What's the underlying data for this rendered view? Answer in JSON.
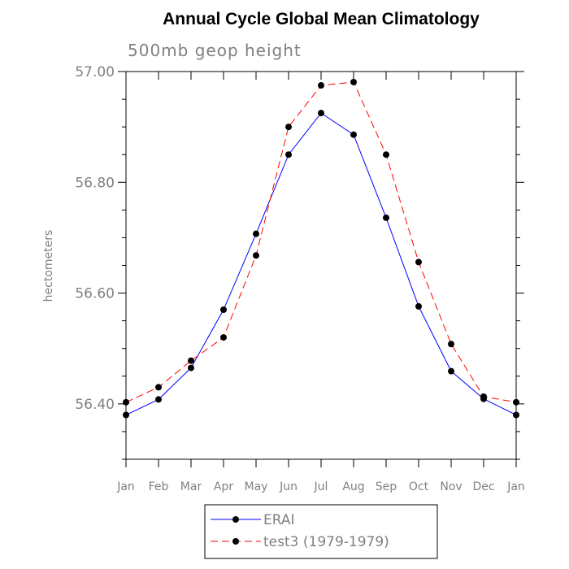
{
  "chart_data": {
    "type": "line",
    "title": "Annual Cycle Global Mean Climatology",
    "subtitle": "500mb geop height",
    "xlabel": "",
    "ylabel": "hectometers",
    "categories": [
      "Jan",
      "Feb",
      "Mar",
      "Apr",
      "May",
      "Jun",
      "Jul",
      "Aug",
      "Sep",
      "Oct",
      "Nov",
      "Dec",
      "Jan"
    ],
    "ylim": [
      56.3,
      57.0
    ],
    "yticks": [
      56.4,
      56.6,
      56.8,
      57.0
    ],
    "ytick_labels": [
      "56.40",
      "56.60",
      "56.80",
      "57.00"
    ],
    "grid": false,
    "legend_position": "bottom",
    "series": [
      {
        "name": "ERAI",
        "color": "#0000ff",
        "dash": "solid",
        "marker": "filled-circle",
        "values": [
          56.38,
          56.408,
          56.465,
          56.57,
          56.707,
          56.85,
          56.925,
          56.886,
          56.736,
          56.576,
          56.459,
          56.409,
          56.38
        ]
      },
      {
        "name": "test3 (1979-1979)",
        "color": "#ff0000",
        "dash": "dashed",
        "marker": "filled-circle",
        "values": [
          56.403,
          56.43,
          56.478,
          56.52,
          56.668,
          56.9,
          56.975,
          56.981,
          56.85,
          56.656,
          56.508,
          56.413,
          56.403
        ]
      }
    ]
  }
}
